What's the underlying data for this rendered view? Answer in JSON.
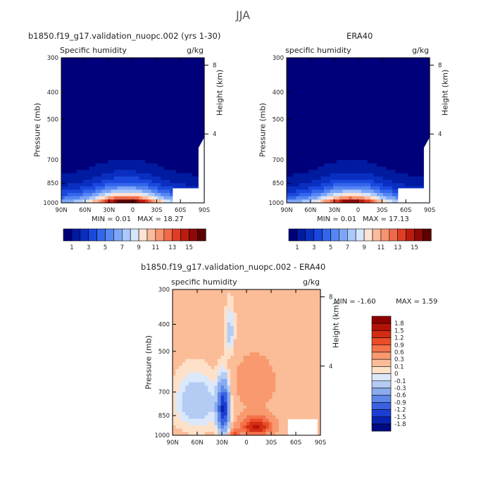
{
  "figure": {
    "season": "JJA",
    "left_title": "b1850.f19_g17.validation_nuopc.002 (yrs 1-30)",
    "right_title": "ERA40",
    "diff_title": "b1850.f19_g17.validation_nuopc.002 - ERA40"
  },
  "panels": [
    {
      "name": "model",
      "variable_label": "Specific humidity",
      "units": "g/kg",
      "ylabel": "Pressure (mb)",
      "y2label": "Height (km)",
      "min_text": "MIN =   0.01",
      "max_text": "MAX =  18.27",
      "diff": false
    },
    {
      "name": "era40",
      "variable_label": "specific humidity",
      "units": "g/kg",
      "ylabel": "Pressure (mb)",
      "y2label": "Height (km)",
      "min_text": "MIN =   0.01",
      "max_text": "MAX =  17.13",
      "diff": false
    },
    {
      "name": "difference",
      "variable_label": "specific humidity",
      "units": "g/kg",
      "ylabel": "Pressure (mb)",
      "y2label": "Height (km)",
      "min_text": "MIN =  -1.60",
      "max_text": "MAX =   1.59",
      "diff": true
    }
  ],
  "colorbars": {
    "humidity": {
      "labels": [
        "1",
        "3",
        "5",
        "7",
        "9",
        "11",
        "13",
        "15"
      ],
      "colors": [
        "#00007a",
        "#001aa0",
        "#0a2fc0",
        "#1a48dc",
        "#3466ec",
        "#5686f2",
        "#7ea6f6",
        "#aac8fa",
        "#d6e6fc",
        "#fde3d3",
        "#fbbb9c",
        "#f79470",
        "#ee6a4a",
        "#dd3e25",
        "#bc1c0e",
        "#8e0808",
        "#5c0000"
      ]
    },
    "difference": {
      "labels": [
        "1.8",
        "1.5",
        "1.2",
        "0.9",
        "0.6",
        "0.3",
        "0.1",
        "0",
        "-0.1",
        "-0.3",
        "-0.6",
        "-0.9",
        "-1.2",
        "-1.5",
        "-1.8"
      ],
      "colors": [
        "#8e0000",
        "#b31208",
        "#d22c12",
        "#ea4d28",
        "#f5734a",
        "#f9996f",
        "#fbbc98",
        "#fde0c8",
        "#dbe8fa",
        "#b4ccf4",
        "#8aacee",
        "#5e88e8",
        "#3a62e0",
        "#1c3ed2",
        "#0a22b0",
        "#000a80"
      ]
    }
  },
  "chart_data": [
    {
      "type": "heatmap",
      "title": "b1850.f19_g17.validation_nuopc.002 (yrs 1-30)",
      "variable": "Specific humidity",
      "units": "g/kg",
      "x_tick_labels": [
        "90N",
        "60N",
        "30N",
        "0",
        "30S",
        "60S",
        "90S"
      ],
      "x_range": [
        90,
        -90
      ],
      "y_tick_labels": [
        "300",
        "400",
        "500",
        "700",
        "850",
        "1000"
      ],
      "y_ticks_mb": [
        300,
        400,
        500,
        700,
        850,
        1000
      ],
      "y_range_mb": [
        300,
        1000
      ],
      "y_scale": "log",
      "y2_ticks_km": [
        4,
        8
      ],
      "min": 0.01,
      "max": 18.27,
      "field": {
        "lat_center": 8,
        "surface_max": 18.3,
        "scale_height_mb": 95,
        "lat_width": 42
      },
      "levels": [
        1,
        2,
        3,
        4,
        5,
        6,
        7,
        8,
        9,
        10,
        11,
        12,
        13,
        14,
        15,
        16
      ]
    },
    {
      "type": "heatmap",
      "title": "ERA40",
      "variable": "specific humidity",
      "units": "g/kg",
      "x_tick_labels": [
        "90N",
        "60N",
        "30N",
        "0",
        "30S",
        "60S",
        "90S"
      ],
      "x_range": [
        90,
        -90
      ],
      "y_tick_labels": [
        "300",
        "400",
        "500",
        "700",
        "850",
        "1000"
      ],
      "y_ticks_mb": [
        300,
        400,
        500,
        700,
        850,
        1000
      ],
      "y_range_mb": [
        300,
        1000
      ],
      "y_scale": "log",
      "y2_ticks_km": [
        4,
        8
      ],
      "min": 0.01,
      "max": 17.13,
      "field": {
        "lat_center": 8,
        "surface_max": 17.1,
        "scale_height_mb": 95,
        "lat_width": 42
      },
      "levels": [
        1,
        2,
        3,
        4,
        5,
        6,
        7,
        8,
        9,
        10,
        11,
        12,
        13,
        14,
        15,
        16
      ]
    },
    {
      "type": "heatmap",
      "title": "b1850.f19_g17.validation_nuopc.002 - ERA40",
      "variable": "specific humidity",
      "units": "g/kg",
      "x_tick_labels": [
        "90N",
        "60N",
        "30N",
        "0",
        "30S",
        "60S",
        "90S"
      ],
      "x_range": [
        90,
        -90
      ],
      "y_tick_labels": [
        "300",
        "400",
        "500",
        "700",
        "850",
        "1000"
      ],
      "y_ticks_mb": [
        300,
        400,
        500,
        700,
        850,
        1000
      ],
      "y_range_mb": [
        300,
        1000
      ],
      "y_scale": "log",
      "y2_ticks_km": [
        4,
        8
      ],
      "min": -1.6,
      "max": 1.59,
      "levels": [
        -1.8,
        -1.5,
        -1.2,
        -0.9,
        -0.6,
        -0.3,
        -0.1,
        0,
        0.1,
        0.3,
        0.6,
        0.9,
        1.2,
        1.5,
        1.8
      ]
    }
  ]
}
